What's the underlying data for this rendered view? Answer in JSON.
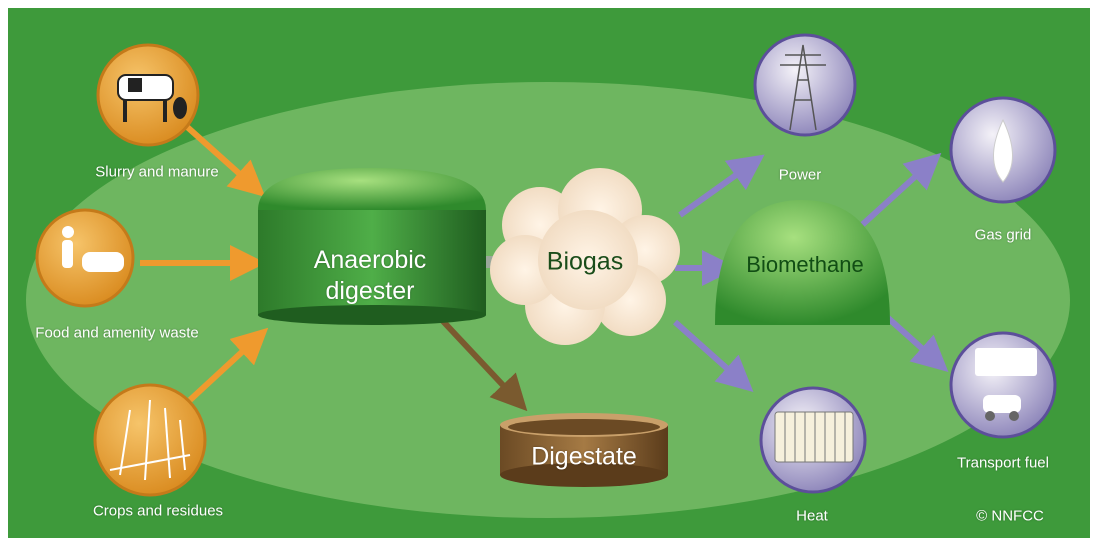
{
  "inputs": [
    {
      "label": "Slurry and manure"
    },
    {
      "label": "Food and amenity waste"
    },
    {
      "label": "Crops and residues"
    }
  ],
  "digester": {
    "label": "Anaerobic digester"
  },
  "biogas": {
    "label": "Biogas"
  },
  "digestate": {
    "label": "Digestate"
  },
  "biomethane": {
    "label": "Biomethane"
  },
  "outputs": [
    {
      "label": "Power"
    },
    {
      "label": "Heat"
    },
    {
      "label": "Gas grid"
    },
    {
      "label": "Transport fuel"
    }
  ],
  "credit": "© NNFCC"
}
